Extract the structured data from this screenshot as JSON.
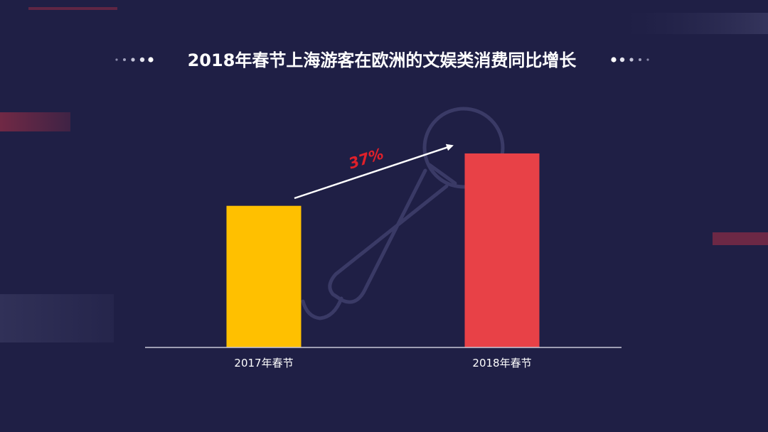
{
  "chart_data": {
    "type": "bar",
    "title": "2018年春节上海游客在欧洲的文娱类消费同比增长",
    "categories": [
      "2017年春节",
      "2018年春节"
    ],
    "values": [
      100,
      137
    ],
    "ylim": [
      0,
      145
    ],
    "colors": [
      "#ffc000",
      "#e84147"
    ],
    "annotation": "37%",
    "grid": false,
    "legend": "none",
    "background_icon": "microphone-icon"
  }
}
